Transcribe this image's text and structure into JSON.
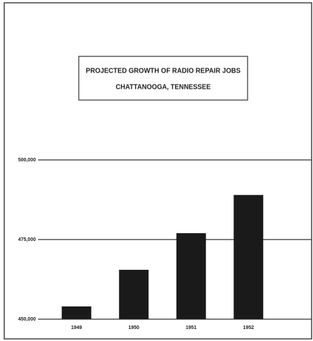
{
  "chart_data": {
    "type": "bar",
    "title": "PROJECTED GROWTH OF RADIO REPAIR JOBS",
    "subtitle": "CHATTANOOGA, TENNESSEE",
    "categories": [
      "1949",
      "1950",
      "1951",
      "1952"
    ],
    "values": [
      454000,
      465500,
      477000,
      489000
    ],
    "color": "#1a1a1a",
    "ylim": [
      450000,
      500000
    ],
    "yticks": [
      {
        "value": 450000,
        "label": "450,000"
      },
      {
        "value": 475000,
        "label": "475,000"
      },
      {
        "value": 500000,
        "label": "500,000"
      }
    ],
    "grid": true
  }
}
